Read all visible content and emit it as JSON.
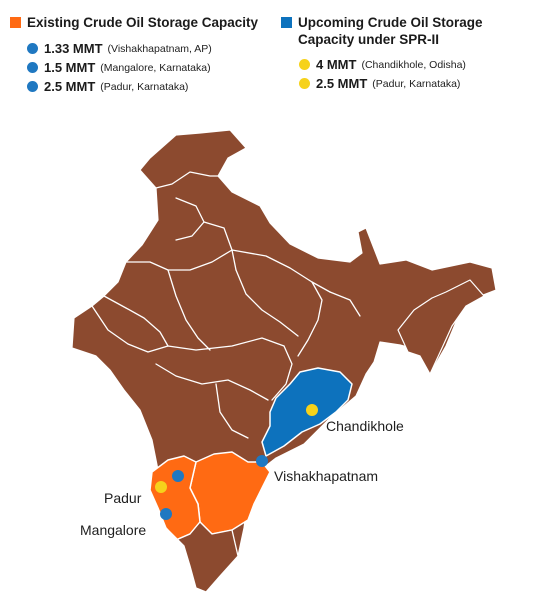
{
  "colors": {
    "existing": "#ff6a13",
    "upcoming": "#0d72bd",
    "land": "#8c4a2f",
    "existing_dot": "#1f78c1",
    "upcoming_dot": "#f6d21b"
  },
  "legend": {
    "existing": {
      "title": "Existing Crude Oil Storage Capacity",
      "items": [
        {
          "value": "1.33 MMT",
          "location": "(Vishakhapatnam, AP)"
        },
        {
          "value": "1.5 MMT",
          "location": "(Mangalore, Karnataka)"
        },
        {
          "value": "2.5 MMT",
          "location": "(Padur, Karnataka)"
        }
      ]
    },
    "upcoming": {
      "title": "Upcoming Crude Oil Storage Capacity under SPR-II",
      "items": [
        {
          "value": "4 MMT",
          "location": "(Chandikhole, Odisha)"
        },
        {
          "value": "2.5 MMT",
          "location": "(Padur, Karnataka)"
        }
      ]
    }
  },
  "map": {
    "labels": {
      "chandikhole": "Chandikhole",
      "vishakhapatnam": "Vishakhapatnam",
      "padur": "Padur",
      "mangalore": "Mangalore"
    }
  }
}
